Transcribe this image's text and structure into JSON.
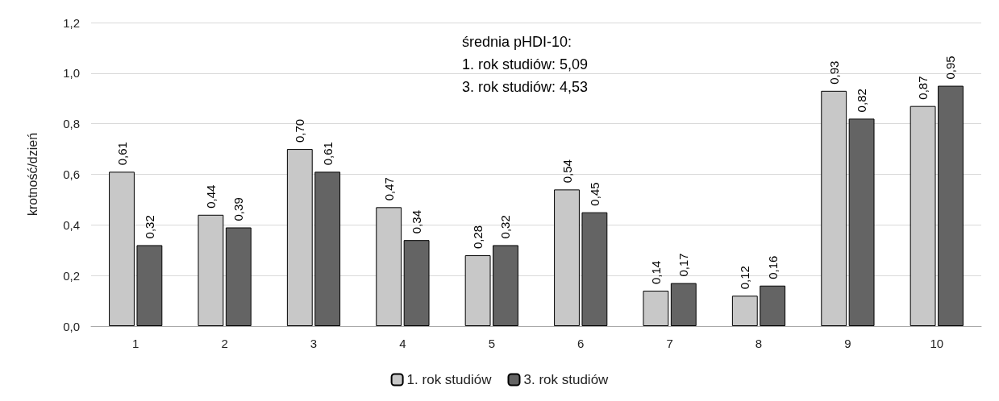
{
  "chart_data": {
    "type": "bar",
    "ylabel": "krotność/dzień",
    "categories": [
      "1",
      "2",
      "3",
      "4",
      "5",
      "6",
      "7",
      "8",
      "9",
      "10"
    ],
    "series": [
      {
        "name": "1. rok studiów",
        "color": "#c8c8c8",
        "values": [
          0.61,
          0.44,
          0.7,
          0.47,
          0.28,
          0.54,
          0.14,
          0.12,
          0.93,
          0.87
        ],
        "value_labels": [
          "0,61",
          "0,44",
          "0,70",
          "0,47",
          "0,28",
          "0,54",
          "0,14",
          "0,12",
          "0,93",
          "0,87"
        ]
      },
      {
        "name": "3. rok studiów",
        "color": "#646464",
        "values": [
          0.32,
          0.39,
          0.61,
          0.34,
          0.32,
          0.45,
          0.17,
          0.16,
          0.82,
          0.95
        ],
        "value_labels": [
          "0,32",
          "0,39",
          "0,61",
          "0,34",
          "0,32",
          "0,45",
          "0,17",
          "0,16",
          "0,82",
          "0,95"
        ]
      }
    ],
    "ylim": [
      0,
      1.2
    ],
    "yticks": [
      {
        "value": 0,
        "label": "0,0"
      },
      {
        "value": 0.2,
        "label": "0,2"
      },
      {
        "value": 0.4,
        "label": "0,4"
      },
      {
        "value": 0.6,
        "label": "0,6"
      },
      {
        "value": 0.8,
        "label": "0,8"
      },
      {
        "value": 1.0,
        "label": "1,0"
      },
      {
        "value": 1.2,
        "label": "1,2"
      }
    ],
    "grid": "y",
    "legend": "bottom",
    "annotations": [
      "średnia pHDI-10:",
      "1. rok studiów: 5,09",
      "3. rok studiów: 4,53"
    ]
  }
}
